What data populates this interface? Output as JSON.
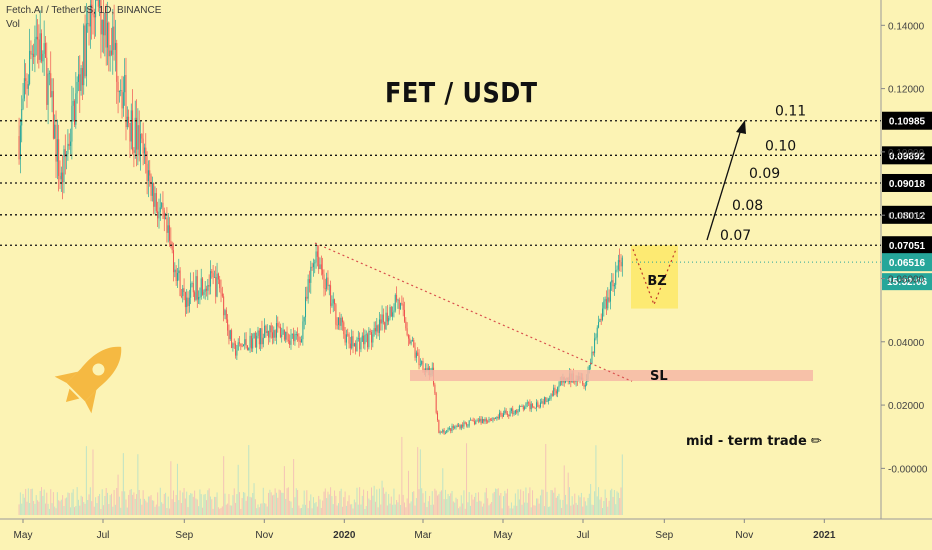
{
  "header": {
    "symbol": "Fetch.AI / TetherUS, 1D, BINANCE",
    "indicator": "Vol"
  },
  "annotations": {
    "note": "mid - term trade",
    "buy_zone_label": "BZ",
    "stop_loss_label": "SL",
    "target_labels": [
      "0.07",
      "0.08",
      "0.09",
      "0.10",
      "0.11"
    ],
    "last_price": "0.06516",
    "countdown": "15:32:06"
  },
  "colors": {
    "background": "#fcf3b4",
    "up": "#26a69a",
    "down": "#ef5350",
    "buy_zone": "#fde96a",
    "stop_loss_band": "#f6b7a6",
    "trendline": "#d9534f",
    "price_tag": "#000000",
    "current_price_tag": "#26a69a"
  },
  "chart_data": {
    "type": "candlestick",
    "title": "FET / USDT",
    "x_ticks": [
      "May",
      "Jul",
      "Sep",
      "Nov",
      "2020",
      "Mar",
      "May",
      "Jul",
      "Sep",
      "Nov",
      "2021"
    ],
    "y_ticks": [
      "0.14000",
      "0.12000",
      "0.10000",
      "0.08000",
      "0.06000",
      "0.04000",
      "0.02000",
      "-0.00000"
    ],
    "ylim": [
      -0.016,
      0.148
    ],
    "horizontal_levels": [
      0.07051,
      0.08012,
      0.09018,
      0.09892,
      0.10985
    ],
    "level_labels": [
      "0.07051",
      "0.08012",
      "0.09018",
      "0.09892",
      "0.10985"
    ],
    "current_price": 0.06516,
    "buy_zone": {
      "from": 0.0505,
      "to": 0.0705
    },
    "stop_loss": {
      "level": 0.0295
    },
    "trendline": [
      [
        0.0712
      ],
      [
        0.0275
      ]
    ],
    "price_path": [
      {
        "t": "2019-04-28",
        "close": 0.105
      },
      {
        "t": "2019-05-10",
        "close": 0.139
      },
      {
        "t": "2019-05-20",
        "close": 0.122
      },
      {
        "t": "2019-05-30",
        "close": 0.09
      },
      {
        "t": "2019-06-15",
        "close": 0.128
      },
      {
        "t": "2019-06-25",
        "close": 0.15
      },
      {
        "t": "2019-07-08",
        "close": 0.135
      },
      {
        "t": "2019-07-20",
        "close": 0.112
      },
      {
        "t": "2019-08-01",
        "close": 0.098
      },
      {
        "t": "2019-08-12",
        "close": 0.082
      },
      {
        "t": "2019-08-22",
        "close": 0.069
      },
      {
        "t": "2019-09-01",
        "close": 0.053
      },
      {
        "t": "2019-09-15",
        "close": 0.059
      },
      {
        "t": "2019-09-28",
        "close": 0.058
      },
      {
        "t": "2019-10-08",
        "close": 0.037
      },
      {
        "t": "2019-10-25",
        "close": 0.041
      },
      {
        "t": "2019-11-10",
        "close": 0.044
      },
      {
        "t": "2019-11-28",
        "close": 0.04
      },
      {
        "t": "2019-12-10",
        "close": 0.07
      },
      {
        "t": "2019-12-22",
        "close": 0.052
      },
      {
        "t": "2020-01-05",
        "close": 0.039
      },
      {
        "t": "2020-01-25",
        "close": 0.042
      },
      {
        "t": "2020-02-10",
        "close": 0.054
      },
      {
        "t": "2020-02-25",
        "close": 0.035
      },
      {
        "t": "2020-03-08",
        "close": 0.03
      },
      {
        "t": "2020-03-13",
        "close": 0.011
      },
      {
        "t": "2020-04-01",
        "close": 0.014
      },
      {
        "t": "2020-04-25",
        "close": 0.016
      },
      {
        "t": "2020-05-15",
        "close": 0.019
      },
      {
        "t": "2020-05-30",
        "close": 0.021
      },
      {
        "t": "2020-06-15",
        "close": 0.027
      },
      {
        "t": "2020-06-28",
        "close": 0.03
      },
      {
        "t": "2020-07-03",
        "close": 0.027
      },
      {
        "t": "2020-07-12",
        "close": 0.045
      },
      {
        "t": "2020-07-22",
        "close": 0.058
      },
      {
        "t": "2020-07-31",
        "close": 0.065
      }
    ]
  }
}
